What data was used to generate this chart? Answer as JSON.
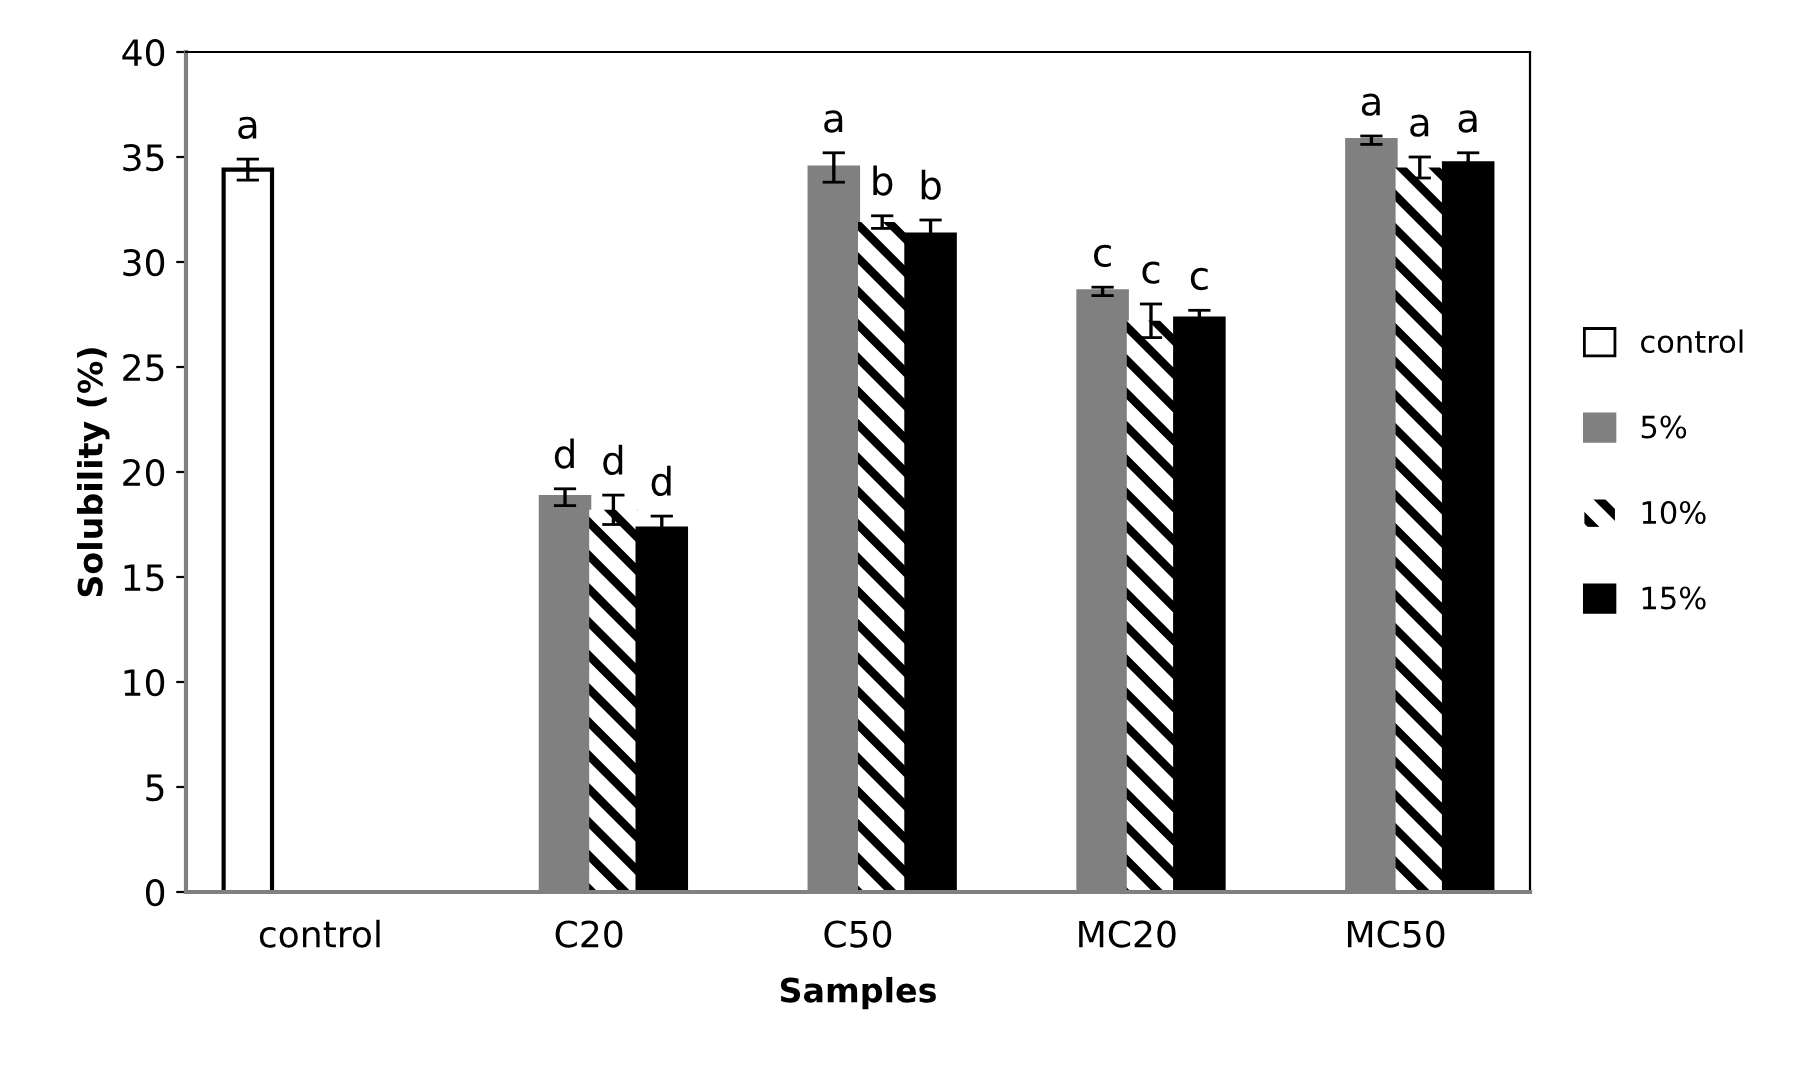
{
  "chart_data": {
    "type": "bar",
    "xlabel": "Samples",
    "ylabel": "Solubility (%)",
    "categories": [
      "control",
      "C20",
      "C50",
      "MC20",
      "MC50"
    ],
    "series": [
      {
        "name": "control",
        "color": "#ffffff",
        "values": [
          34.4,
          null,
          null,
          null,
          null
        ],
        "errors": [
          0.5,
          null,
          null,
          null,
          null
        ],
        "value_labels": [
          "a",
          null,
          null,
          null,
          null
        ]
      },
      {
        "name": "5%",
        "color": "#808080",
        "values": [
          null,
          18.8,
          34.5,
          28.6,
          35.8
        ],
        "errors": [
          null,
          0.4,
          0.7,
          0.2,
          0.2
        ],
        "value_labels": [
          null,
          "d",
          "a",
          "c",
          "a"
        ]
      },
      {
        "name": "10%",
        "color": "#ffffff",
        "values": [
          null,
          18.2,
          31.9,
          27.2,
          34.5
        ],
        "errors": [
          null,
          0.7,
          0.3,
          0.8,
          0.5
        ],
        "value_labels": [
          null,
          "d",
          "b",
          "c",
          "a"
        ]
      },
      {
        "name": "15%",
        "color": "#000000",
        "values": [
          null,
          17.3,
          31.3,
          27.3,
          34.7
        ],
        "errors": [
          null,
          0.6,
          0.7,
          0.4,
          0.5
        ],
        "value_labels": [
          null,
          "d",
          "b",
          "c",
          "a"
        ]
      }
    ],
    "ylim": [
      0,
      40
    ],
    "yticks": [
      0,
      5,
      10,
      15,
      20,
      25,
      30,
      35,
      40
    ],
    "grid": false,
    "legend": "right"
  }
}
